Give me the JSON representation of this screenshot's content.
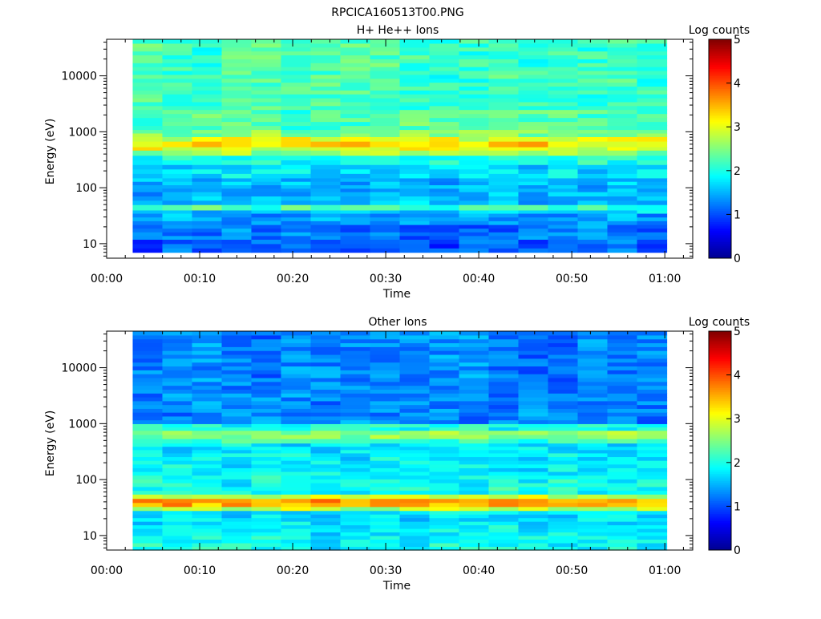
{
  "figure_title": "RPCICA160513T00.PNG",
  "colorscale": [
    "#00008f",
    "#0000ff",
    "#0080ff",
    "#00ffff",
    "#80ff80",
    "#ffff00",
    "#ff8000",
    "#ff0000",
    "#800000"
  ],
  "chart_data": [
    {
      "type": "heatmap",
      "title": "H+ He++ Ions",
      "xlabel": "Time",
      "ylabel": "Energy (eV)",
      "x_ticks": [
        "00:00",
        "00:10",
        "00:20",
        "00:30",
        "00:40",
        "00:50",
        "01:00"
      ],
      "y_ticks": [
        "10",
        "100",
        "1000",
        "10000"
      ],
      "y_scale": "log",
      "y_range_eV": [
        5.5,
        45000
      ],
      "x_range_min": [
        0,
        63
      ],
      "data_x_range_min": [
        2.8,
        60.2
      ],
      "time_bins": 18,
      "colorbar": {
        "label": "Log counts",
        "range": [
          0,
          5
        ],
        "ticks": [
          "0",
          "1",
          "2",
          "3",
          "4",
          "5"
        ]
      },
      "bands": [
        {
          "e_lo": 7.0,
          "e_hi": 12.0,
          "value": 1.05
        },
        {
          "e_lo": 12.0,
          "e_hi": 22.0,
          "value": 1.2
        },
        {
          "e_lo": 22.0,
          "e_hi": 35.0,
          "value": 1.45
        },
        {
          "e_lo": 35.0,
          "e_hi": 40.0,
          "value": 1.6
        },
        {
          "e_lo": 40.0,
          "e_hi": 50.0,
          "value": 2.15
        },
        {
          "e_lo": 50.0,
          "e_hi": 85.0,
          "value": 1.55
        },
        {
          "e_lo": 85.0,
          "e_hi": 150.0,
          "value": 1.5
        },
        {
          "e_lo": 150.0,
          "e_hi": 260.0,
          "value": 1.7
        },
        {
          "e_lo": 260.0,
          "e_hi": 380.0,
          "value": 2.0
        },
        {
          "e_lo": 380.0,
          "e_hi": 470.0,
          "value": 2.6
        },
        {
          "e_lo": 470.0,
          "e_hi": 540.0,
          "value": 3.0
        },
        {
          "e_lo": 540.0,
          "e_hi": 680.0,
          "value": 3.25
        },
        {
          "e_lo": 680.0,
          "e_hi": 820.0,
          "value": 2.95
        },
        {
          "e_lo": 820.0,
          "e_hi": 1100.0,
          "value": 2.5
        },
        {
          "e_lo": 1100.0,
          "e_hi": 2500.0,
          "value": 2.3
        },
        {
          "e_lo": 2500.0,
          "e_hi": 45000.0,
          "value": 2.2
        }
      ]
    },
    {
      "type": "heatmap",
      "title": "Other Ions",
      "xlabel": "Time",
      "ylabel": "Energy (eV)",
      "x_ticks": [
        "00:00",
        "00:10",
        "00:20",
        "00:30",
        "00:40",
        "00:50",
        "01:00"
      ],
      "y_ticks": [
        "10",
        "100",
        "1000",
        "10000"
      ],
      "y_scale": "log",
      "y_range_eV": [
        5.5,
        45000
      ],
      "x_range_min": [
        0,
        63
      ],
      "data_x_range_min": [
        2.8,
        60.2
      ],
      "time_bins": 18,
      "colorbar": {
        "label": "Log counts",
        "range": [
          0,
          5
        ],
        "ticks": [
          "0",
          "1",
          "2",
          "3",
          "4",
          "5"
        ]
      },
      "bands": [
        {
          "e_lo": 5.5,
          "e_hi": 10.0,
          "value": 1.9
        },
        {
          "e_lo": 10.0,
          "e_hi": 18.0,
          "value": 1.8
        },
        {
          "e_lo": 18.0,
          "e_hi": 28.0,
          "value": 1.75
        },
        {
          "e_lo": 28.0,
          "e_hi": 33.0,
          "value": 2.8
        },
        {
          "e_lo": 33.0,
          "e_hi": 46.0,
          "value": 3.55
        },
        {
          "e_lo": 46.0,
          "e_hi": 55.0,
          "value": 2.9
        },
        {
          "e_lo": 55.0,
          "e_hi": 120.0,
          "value": 1.95
        },
        {
          "e_lo": 120.0,
          "e_hi": 300.0,
          "value": 1.8
        },
        {
          "e_lo": 300.0,
          "e_hi": 450.0,
          "value": 1.75
        },
        {
          "e_lo": 450.0,
          "e_hi": 540.0,
          "value": 2.2
        },
        {
          "e_lo": 540.0,
          "e_hi": 760.0,
          "value": 2.55
        },
        {
          "e_lo": 760.0,
          "e_hi": 1000.0,
          "value": 2.0
        },
        {
          "e_lo": 1000.0,
          "e_hi": 3000.0,
          "value": 1.3
        },
        {
          "e_lo": 3000.0,
          "e_hi": 45000.0,
          "value": 1.25
        }
      ]
    }
  ]
}
